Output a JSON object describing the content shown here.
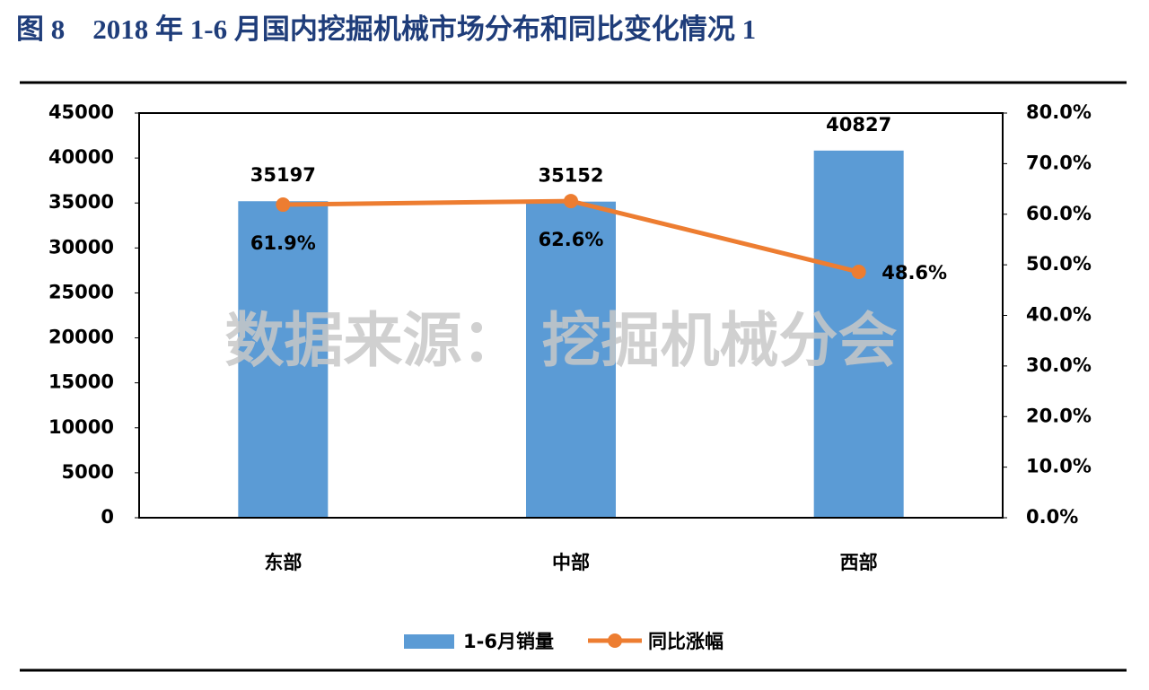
{
  "chart_data": {
    "type": "bar_line",
    "title": "图 8　2018 年 1-6 月国内挖掘机械市场分布和同比变化情况 1",
    "annotation": "数据来源： 挖掘机械分会",
    "categories": [
      "东部",
      "中部",
      "西部"
    ],
    "series": [
      {
        "name": "1-6月销量",
        "color": "#5b9bd5",
        "type": "bar",
        "values": [
          35197,
          35152,
          40827
        ]
      },
      {
        "name": "同比涨幅",
        "color": "#ed7d31",
        "type": "line",
        "axis": "y2",
        "values": [
          61.9,
          62.6,
          48.6
        ],
        "value_labels": [
          "61.9%",
          "62.6%",
          "48.6%"
        ]
      }
    ],
    "ylim": [
      0,
      45000
    ],
    "yticks": [
      0,
      5000,
      10000,
      15000,
      20000,
      25000,
      30000,
      35000,
      40000,
      45000
    ],
    "y2lim": [
      0,
      80
    ],
    "y2ticks": [
      {
        "value": 0,
        "label": "0.0%"
      },
      {
        "value": 10,
        "label": "10.0%"
      },
      {
        "value": 20,
        "label": "20.0%"
      },
      {
        "value": 30,
        "label": "30.0%"
      },
      {
        "value": 40,
        "label": "40.0%"
      },
      {
        "value": 50,
        "label": "50.0%"
      },
      {
        "value": 60,
        "label": "60.0%"
      },
      {
        "value": 70,
        "label": "70.0%"
      },
      {
        "value": 80,
        "label": "80.0%"
      }
    ],
    "legend": "bottom"
  }
}
